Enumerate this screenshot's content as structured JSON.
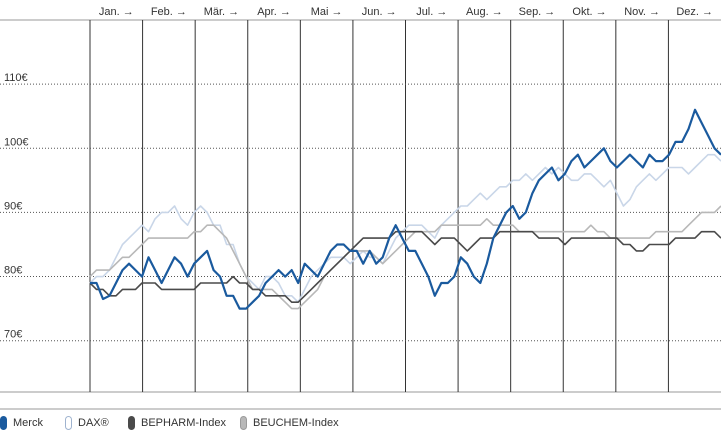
{
  "chart_data": {
    "type": "line",
    "title": "",
    "xlabel": "",
    "ylabel": "",
    "x_ticks": [
      "Jan. →",
      "Feb. →",
      "Mär. →",
      "Apr. →",
      "Mai →",
      "Jun. →",
      "Jul. →",
      "Aug. →",
      "Sep. →",
      "Okt. →",
      "Nov. →",
      "Dez. →"
    ],
    "y_ticks": [
      "70€",
      "80€",
      "90€",
      "100€",
      "110€"
    ],
    "ylim": [
      62,
      120
    ],
    "grid": "dotted horizontal, vertical month separators",
    "legend_position": "bottom",
    "series": [
      {
        "name": "Merck",
        "color": "#1a5a9e",
        "values": [
          79,
          79,
          76.5,
          77,
          79,
          81,
          82,
          81,
          80,
          83,
          81,
          79,
          81,
          83,
          82,
          80,
          82,
          83,
          84,
          81,
          80,
          77,
          77,
          75,
          75,
          76,
          77,
          79,
          80,
          81,
          80,
          81,
          79,
          82,
          81,
          80,
          82,
          84,
          85,
          85,
          84,
          84,
          82,
          84,
          82,
          83,
          86,
          88,
          86,
          84,
          84,
          82,
          80,
          77,
          79,
          79,
          80,
          83,
          82,
          80,
          79,
          82,
          86,
          88,
          90,
          91,
          89,
          90,
          93,
          95,
          96,
          97,
          95,
          96,
          98,
          99,
          97,
          98,
          99,
          100,
          98,
          97,
          98,
          99,
          98,
          97,
          99,
          98,
          98,
          99,
          101,
          101,
          103,
          106,
          104,
          102,
          100,
          99
        ]
      },
      {
        "name": "DAX®",
        "color": "#c9d6e8",
        "values": [
          79,
          80,
          80,
          81,
          83,
          85,
          86,
          87,
          88,
          87,
          89,
          90,
          90,
          91,
          89,
          88,
          90,
          91,
          90,
          88,
          88,
          85,
          85,
          82,
          80,
          79,
          78,
          80,
          80,
          79,
          77,
          77,
          76,
          78,
          80,
          81,
          82,
          83,
          83,
          83,
          82,
          83,
          84,
          83,
          83,
          82,
          84,
          86,
          87,
          88,
          88,
          88,
          87,
          86,
          88,
          89,
          90,
          91,
          91,
          92,
          93,
          92,
          93,
          94,
          94,
          95,
          95,
          96,
          95,
          96,
          97,
          96,
          97,
          96,
          95,
          95,
          96,
          96,
          95,
          94,
          95,
          93,
          91,
          92,
          94,
          95,
          96,
          95,
          96,
          97,
          97,
          97,
          96,
          97,
          98,
          99,
          99,
          98
        ]
      },
      {
        "name": "BEPHARM-Index",
        "color": "#4a4a4a",
        "values": [
          79,
          78,
          78,
          77,
          77,
          78,
          78,
          78,
          79,
          79,
          79,
          78,
          78,
          78,
          78,
          78,
          78,
          79,
          79,
          79,
          79,
          79,
          80,
          79,
          79,
          78,
          78,
          77,
          77,
          77,
          77,
          76,
          76,
          77,
          78,
          79,
          80,
          81,
          82,
          83,
          84,
          85,
          86,
          86,
          86,
          86,
          86,
          87,
          87,
          87,
          87,
          87,
          86,
          85,
          86,
          86,
          86,
          85,
          84,
          85,
          86,
          86,
          86,
          87,
          87,
          87,
          87,
          87,
          87,
          86,
          86,
          86,
          86,
          85,
          86,
          86,
          86,
          86,
          86,
          86,
          86,
          86,
          85,
          85,
          84,
          84,
          85,
          85,
          85,
          85,
          86,
          86,
          86,
          86,
          87,
          87,
          87,
          86
        ]
      },
      {
        "name": "BEUCHEM-Index",
        "color": "#b8b8b8",
        "values": [
          80,
          81,
          81,
          81,
          82,
          83,
          83,
          84,
          85,
          86,
          86,
          86,
          86,
          86,
          86,
          86,
          87,
          87,
          88,
          88,
          87,
          86,
          84,
          82,
          80,
          78,
          78,
          78,
          78,
          77,
          76,
          75,
          75,
          76,
          77,
          78,
          80,
          81,
          82,
          83,
          84,
          84,
          84,
          84,
          83,
          82,
          83,
          84,
          85,
          86,
          87,
          87,
          87,
          87,
          88,
          88,
          88,
          88,
          88,
          88,
          88,
          89,
          88,
          88,
          88,
          88,
          87,
          87,
          87,
          87,
          87,
          87,
          87,
          87,
          87,
          87,
          87,
          88,
          87,
          87,
          86,
          86,
          86,
          86,
          86,
          86,
          86,
          87,
          87,
          87,
          87,
          87,
          88,
          89,
          90,
          90,
          90,
          91
        ]
      }
    ]
  },
  "legend": [
    {
      "label": "Merck",
      "swatch_fill": "#1a5a9e",
      "swatch_border": "#1a5a9e"
    },
    {
      "label": "DAX®",
      "swatch_fill": "#ffffff",
      "swatch_border": "#9fb3cf"
    },
    {
      "label": "BEPHARM-Index",
      "swatch_fill": "#4a4a4a",
      "swatch_border": "#4a4a4a"
    },
    {
      "label": "BEUCHEM-Index",
      "swatch_fill": "#b8b8b8",
      "swatch_border": "#9a9a9a"
    }
  ]
}
